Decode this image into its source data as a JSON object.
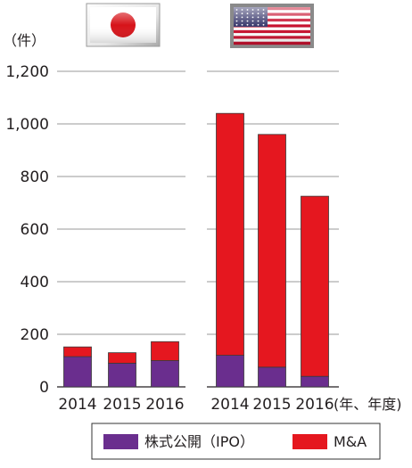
{
  "chart_data": {
    "type": "bar",
    "stacked": true,
    "y_unit_label": "（件）",
    "x_unit_label": "(年、年度)",
    "ylim": [
      0,
      1200
    ],
    "y_ticks": [
      {
        "value": 0,
        "label": "0"
      },
      {
        "value": 200,
        "label": "200"
      },
      {
        "value": 400,
        "label": "400"
      },
      {
        "value": 600,
        "label": "600"
      },
      {
        "value": 800,
        "label": "800"
      },
      {
        "value": 1000,
        "label": "1,000"
      },
      {
        "value": 1200,
        "label": "1,200"
      }
    ],
    "grid": true,
    "legend_placement": "bottom",
    "series": [
      {
        "name": "株式公開（IPO）",
        "color": "#6a2e8e"
      },
      {
        "name": "M&A",
        "color": "#e5171f"
      }
    ],
    "groups": [
      {
        "flag_icon": "japan-flag-icon",
        "categories": [
          "2014",
          "2015",
          "2016"
        ],
        "values": {
          "株式公開（IPO）": [
            115,
            90,
            100
          ],
          "M&A": [
            37,
            40,
            72
          ]
        }
      },
      {
        "flag_icon": "usa-flag-icon",
        "categories": [
          "2014",
          "2015",
          "2016"
        ],
        "values": {
          "株式公開（IPO）": [
            120,
            75,
            40
          ],
          "M&A": [
            920,
            885,
            685
          ]
        }
      }
    ]
  }
}
